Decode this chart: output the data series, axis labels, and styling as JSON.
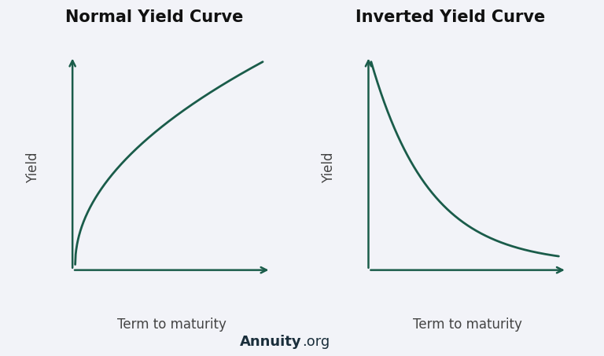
{
  "title_normal": "Normal Yield Curve",
  "title_inverted": "Inverted Yield Curve",
  "ylabel": "Yield",
  "xlabel": "Term to maturity",
  "curve_color": "#1a5c4a",
  "axis_color": "#1a5c4a",
  "background_color": "#f2f3f8",
  "title_fontsize": 15,
  "label_fontsize": 12,
  "watermark_bold": "Annuity",
  "watermark_normal": ".org",
  "watermark_color": "#1a2e3b",
  "watermark_fontsize": 13,
  "axis_lw": 1.8,
  "curve_lw": 2.0
}
